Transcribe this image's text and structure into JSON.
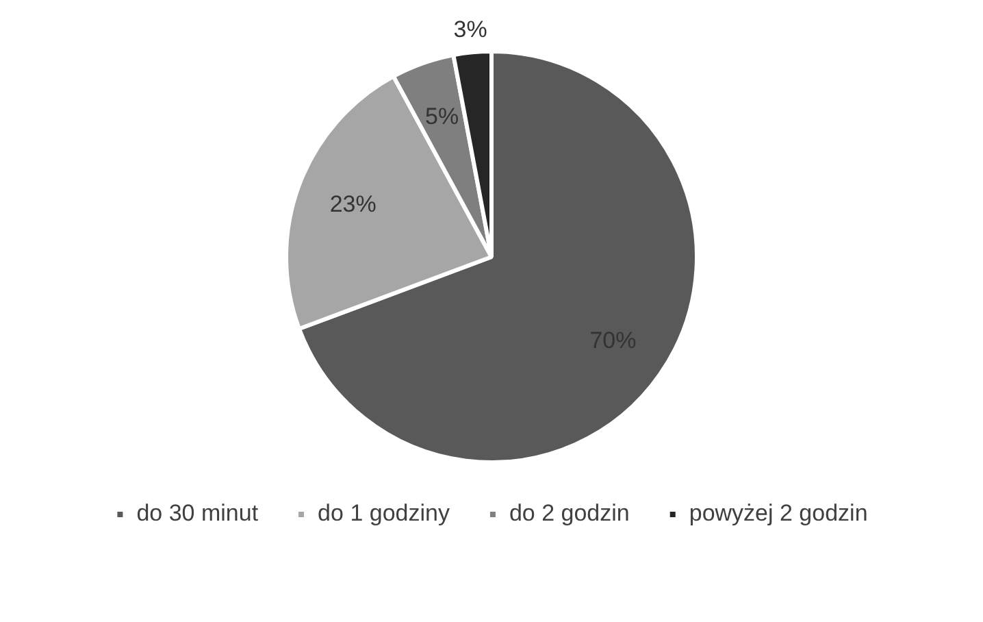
{
  "chart_data": {
    "type": "pie",
    "categories": [
      "do 30 minut",
      "do 1 godziny",
      "do 2 godzin",
      "powyżej 2 godzin"
    ],
    "values": [
      70,
      23,
      5,
      3
    ],
    "colors": [
      "#595959",
      "#a6a6a6",
      "#7f7f7f",
      "#262626"
    ],
    "value_labels": [
      "70%",
      "23%",
      "5%",
      "3%"
    ],
    "legend": "bottom"
  }
}
